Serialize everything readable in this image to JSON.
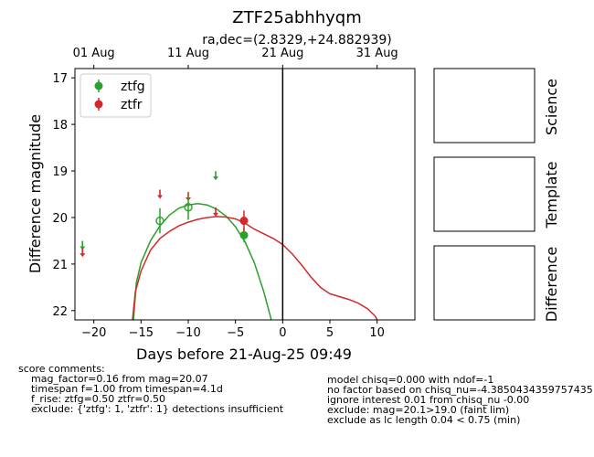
{
  "figure": {
    "title": "ZTF25abhhyqm",
    "subtitle": "ra,dec=(2.8329,+24.882939)"
  },
  "chart_data": {
    "type": "scatter",
    "xlabel": "Days before 21-Aug-25 09:49",
    "ylabel": "Difference magnitude",
    "xlim": [
      -22,
      14
    ],
    "ylim": [
      22.2,
      16.8
    ],
    "y_inverted": true,
    "x_ticks": [
      -20,
      -15,
      -10,
      -5,
      0,
      5,
      10
    ],
    "x_tick_labels": [
      "−20",
      "−15",
      "−10",
      "−5",
      "0",
      "5",
      "10"
    ],
    "y_ticks": [
      17,
      18,
      19,
      20,
      21,
      22
    ],
    "y_tick_labels": [
      "17",
      "18",
      "19",
      "20",
      "21",
      "22"
    ],
    "top_axis": {
      "ticks": [
        -20,
        -10,
        0,
        10
      ],
      "labels": [
        "01 Aug",
        "11 Aug",
        "21 Aug",
        "31 Aug"
      ]
    },
    "vline_x": 0,
    "legend_position": "upper-left",
    "series": [
      {
        "name": "ztfg",
        "color": "#2ca02c",
        "detections": [
          {
            "x": -13.0,
            "y": 20.07,
            "err": 0.27,
            "hollow": true
          },
          {
            "x": -10.0,
            "y": 19.78,
            "err": 0.27,
            "hollow": true
          },
          {
            "x": -4.1,
            "y": 20.38,
            "err": 0.15,
            "hollow": false
          }
        ],
        "upper_limits": [
          {
            "x": -21.2,
            "y": 20.6
          },
          {
            "x": -7.1,
            "y": 19.1
          }
        ],
        "model_curve": [
          [
            -15.8,
            22.2
          ],
          [
            -15.5,
            21.4
          ],
          [
            -15.0,
            20.97
          ],
          [
            -14.0,
            20.5
          ],
          [
            -13.0,
            20.18
          ],
          [
            -12.0,
            19.95
          ],
          [
            -11.0,
            19.8
          ],
          [
            -10.0,
            19.73
          ],
          [
            -9.0,
            19.7
          ],
          [
            -8.0,
            19.73
          ],
          [
            -7.0,
            19.82
          ],
          [
            -6.0,
            19.97
          ],
          [
            -5.0,
            20.2
          ],
          [
            -4.0,
            20.52
          ],
          [
            -3.0,
            20.97
          ],
          [
            -2.0,
            21.6
          ],
          [
            -1.2,
            22.2
          ]
        ]
      },
      {
        "name": "ztfr",
        "color": "#d62728",
        "detections": [
          {
            "x": -4.1,
            "y": 20.07,
            "err": 0.22,
            "hollow": false
          }
        ],
        "upper_limits": [
          {
            "x": -21.2,
            "y": 20.75
          },
          {
            "x": -13.0,
            "y": 19.5
          },
          {
            "x": -10.0,
            "y": 19.55
          },
          {
            "x": -7.1,
            "y": 19.88
          }
        ],
        "model_curve": [
          [
            -15.9,
            22.2
          ],
          [
            -15.6,
            21.6
          ],
          [
            -15.0,
            21.15
          ],
          [
            -14.0,
            20.7
          ],
          [
            -13.0,
            20.45
          ],
          [
            -12.0,
            20.3
          ],
          [
            -11.0,
            20.18
          ],
          [
            -10.0,
            20.1
          ],
          [
            -9.0,
            20.04
          ],
          [
            -8.0,
            20.0
          ],
          [
            -7.0,
            19.98
          ],
          [
            -6.0,
            19.99
          ],
          [
            -5.0,
            20.03
          ],
          [
            -4.0,
            20.12
          ],
          [
            -3.0,
            20.25
          ],
          [
            -2.0,
            20.35
          ],
          [
            -1.0,
            20.45
          ],
          [
            0.0,
            20.58
          ],
          [
            1.0,
            20.78
          ],
          [
            2.0,
            21.02
          ],
          [
            3.0,
            21.28
          ],
          [
            4.0,
            21.5
          ],
          [
            5.0,
            21.64
          ],
          [
            6.0,
            21.7
          ],
          [
            7.0,
            21.76
          ],
          [
            8.0,
            21.84
          ],
          [
            9.0,
            21.96
          ],
          [
            9.8,
            22.12
          ],
          [
            10.0,
            22.2
          ]
        ]
      }
    ]
  },
  "side_panels": [
    {
      "label": "Science"
    },
    {
      "label": "Template"
    },
    {
      "label": "Difference"
    }
  ],
  "comments_left": [
    "score comments:",
    "    mag_factor=0.16 from mag=20.07",
    "    timespan f=1.00 from timespan=4.1d",
    "    f_rise: ztfg=0.50 ztfr=0.50",
    "    exclude: {'ztfg': 1, 'ztfr': 1} detections insufficient"
  ],
  "comments_right": [
    "model chisq=0.000 with ndof=-1",
    "no factor based on chisq_nu=-4.3850434359757435",
    "ignore interest 0.01 from chisq_nu -0.00",
    "exclude: mag=20.1>19.0 (faint lim)",
    "exclude as lc length 0.04 < 0.75 (min)"
  ]
}
